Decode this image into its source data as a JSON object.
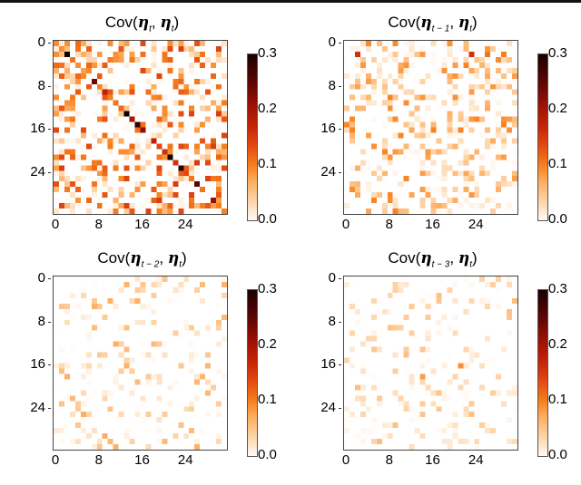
{
  "chart_data": [
    {
      "type": "heatmap",
      "title": "Cov(η_t, η_t)",
      "title_parts": {
        "a": "t",
        "b": "t"
      },
      "grid_size": 32,
      "xticks": [
        "0",
        "8",
        "16",
        "24"
      ],
      "yticks": [
        "0",
        "8",
        "16",
        "24"
      ],
      "colorbar": {
        "ticks": [
          "0.3",
          "0.2",
          "0.1",
          "0.0"
        ],
        "range": [
          0.0,
          0.3
        ],
        "colormap": "gist_heat_r"
      },
      "diagonal_values": [
        0.08,
        0.08,
        0.3,
        0.1,
        0.08,
        0.07,
        0.0,
        0.25,
        0.09,
        0.18,
        0.09,
        0.1,
        0.11,
        0.3,
        0.2,
        0.28,
        0.22,
        0.0,
        0.18,
        0.14,
        0.16,
        0.3,
        0.16,
        0.28,
        0.14,
        0.1,
        0.26,
        0.1,
        0.0,
        0.22,
        0.09,
        0.09
      ],
      "offdiag_density": 0.45,
      "offdiag_max": 0.15,
      "seed": 7
    },
    {
      "type": "heatmap",
      "title": "Cov(η_{t-1}, η_t)",
      "title_parts": {
        "a": "t − 1",
        "b": "t"
      },
      "grid_size": 32,
      "xticks": [
        "0",
        "8",
        "16",
        "24"
      ],
      "yticks": [
        "0",
        "8",
        "16",
        "24"
      ],
      "colorbar": {
        "ticks": [
          "0.3",
          "0.2",
          "0.1",
          "0.0"
        ],
        "range": [
          0.0,
          0.3
        ],
        "colormap": "gist_heat_r"
      },
      "highlights": [
        {
          "row": 2,
          "col": 2,
          "value": 0.16
        },
        {
          "row": 2,
          "col": 23,
          "value": 0.16
        },
        {
          "row": 2,
          "col": 26,
          "value": 0.1
        },
        {
          "row": 2,
          "col": 29,
          "value": 0.09
        }
      ],
      "offdiag_density": 0.38,
      "offdiag_max": 0.09,
      "seed": 21
    },
    {
      "type": "heatmap",
      "title": "Cov(η_{t-2}, η_t)",
      "title_parts": {
        "a": "t − 2",
        "b": "t"
      },
      "grid_size": 32,
      "xticks": [
        "0",
        "8",
        "16",
        "24"
      ],
      "yticks": [
        "0",
        "8",
        "16",
        "24"
      ],
      "colorbar": {
        "ticks": [
          "0.3",
          "0.2",
          "0.1",
          "0.0"
        ],
        "range": [
          0.0,
          0.3
        ],
        "colormap": "gist_heat_r"
      },
      "offdiag_density": 0.26,
      "offdiag_max": 0.06,
      "seed": 33
    },
    {
      "type": "heatmap",
      "title": "Cov(η_{t-3}, η_t)",
      "title_parts": {
        "a": "t − 3",
        "b": "t"
      },
      "grid_size": 32,
      "xticks": [
        "0",
        "8",
        "16",
        "24"
      ],
      "yticks": [
        "0",
        "8",
        "16",
        "24"
      ],
      "colorbar": {
        "ticks": [
          "0.3",
          "0.2",
          "0.1",
          "0.0"
        ],
        "range": [
          0.0,
          0.3
        ],
        "colormap": "gist_heat_r"
      },
      "highlights": [
        {
          "row": 16,
          "col": 21,
          "value": 0.08
        },
        {
          "row": 18,
          "col": 14,
          "value": 0.07
        }
      ],
      "offdiag_density": 0.24,
      "offdiag_max": 0.05,
      "seed": 49
    }
  ]
}
